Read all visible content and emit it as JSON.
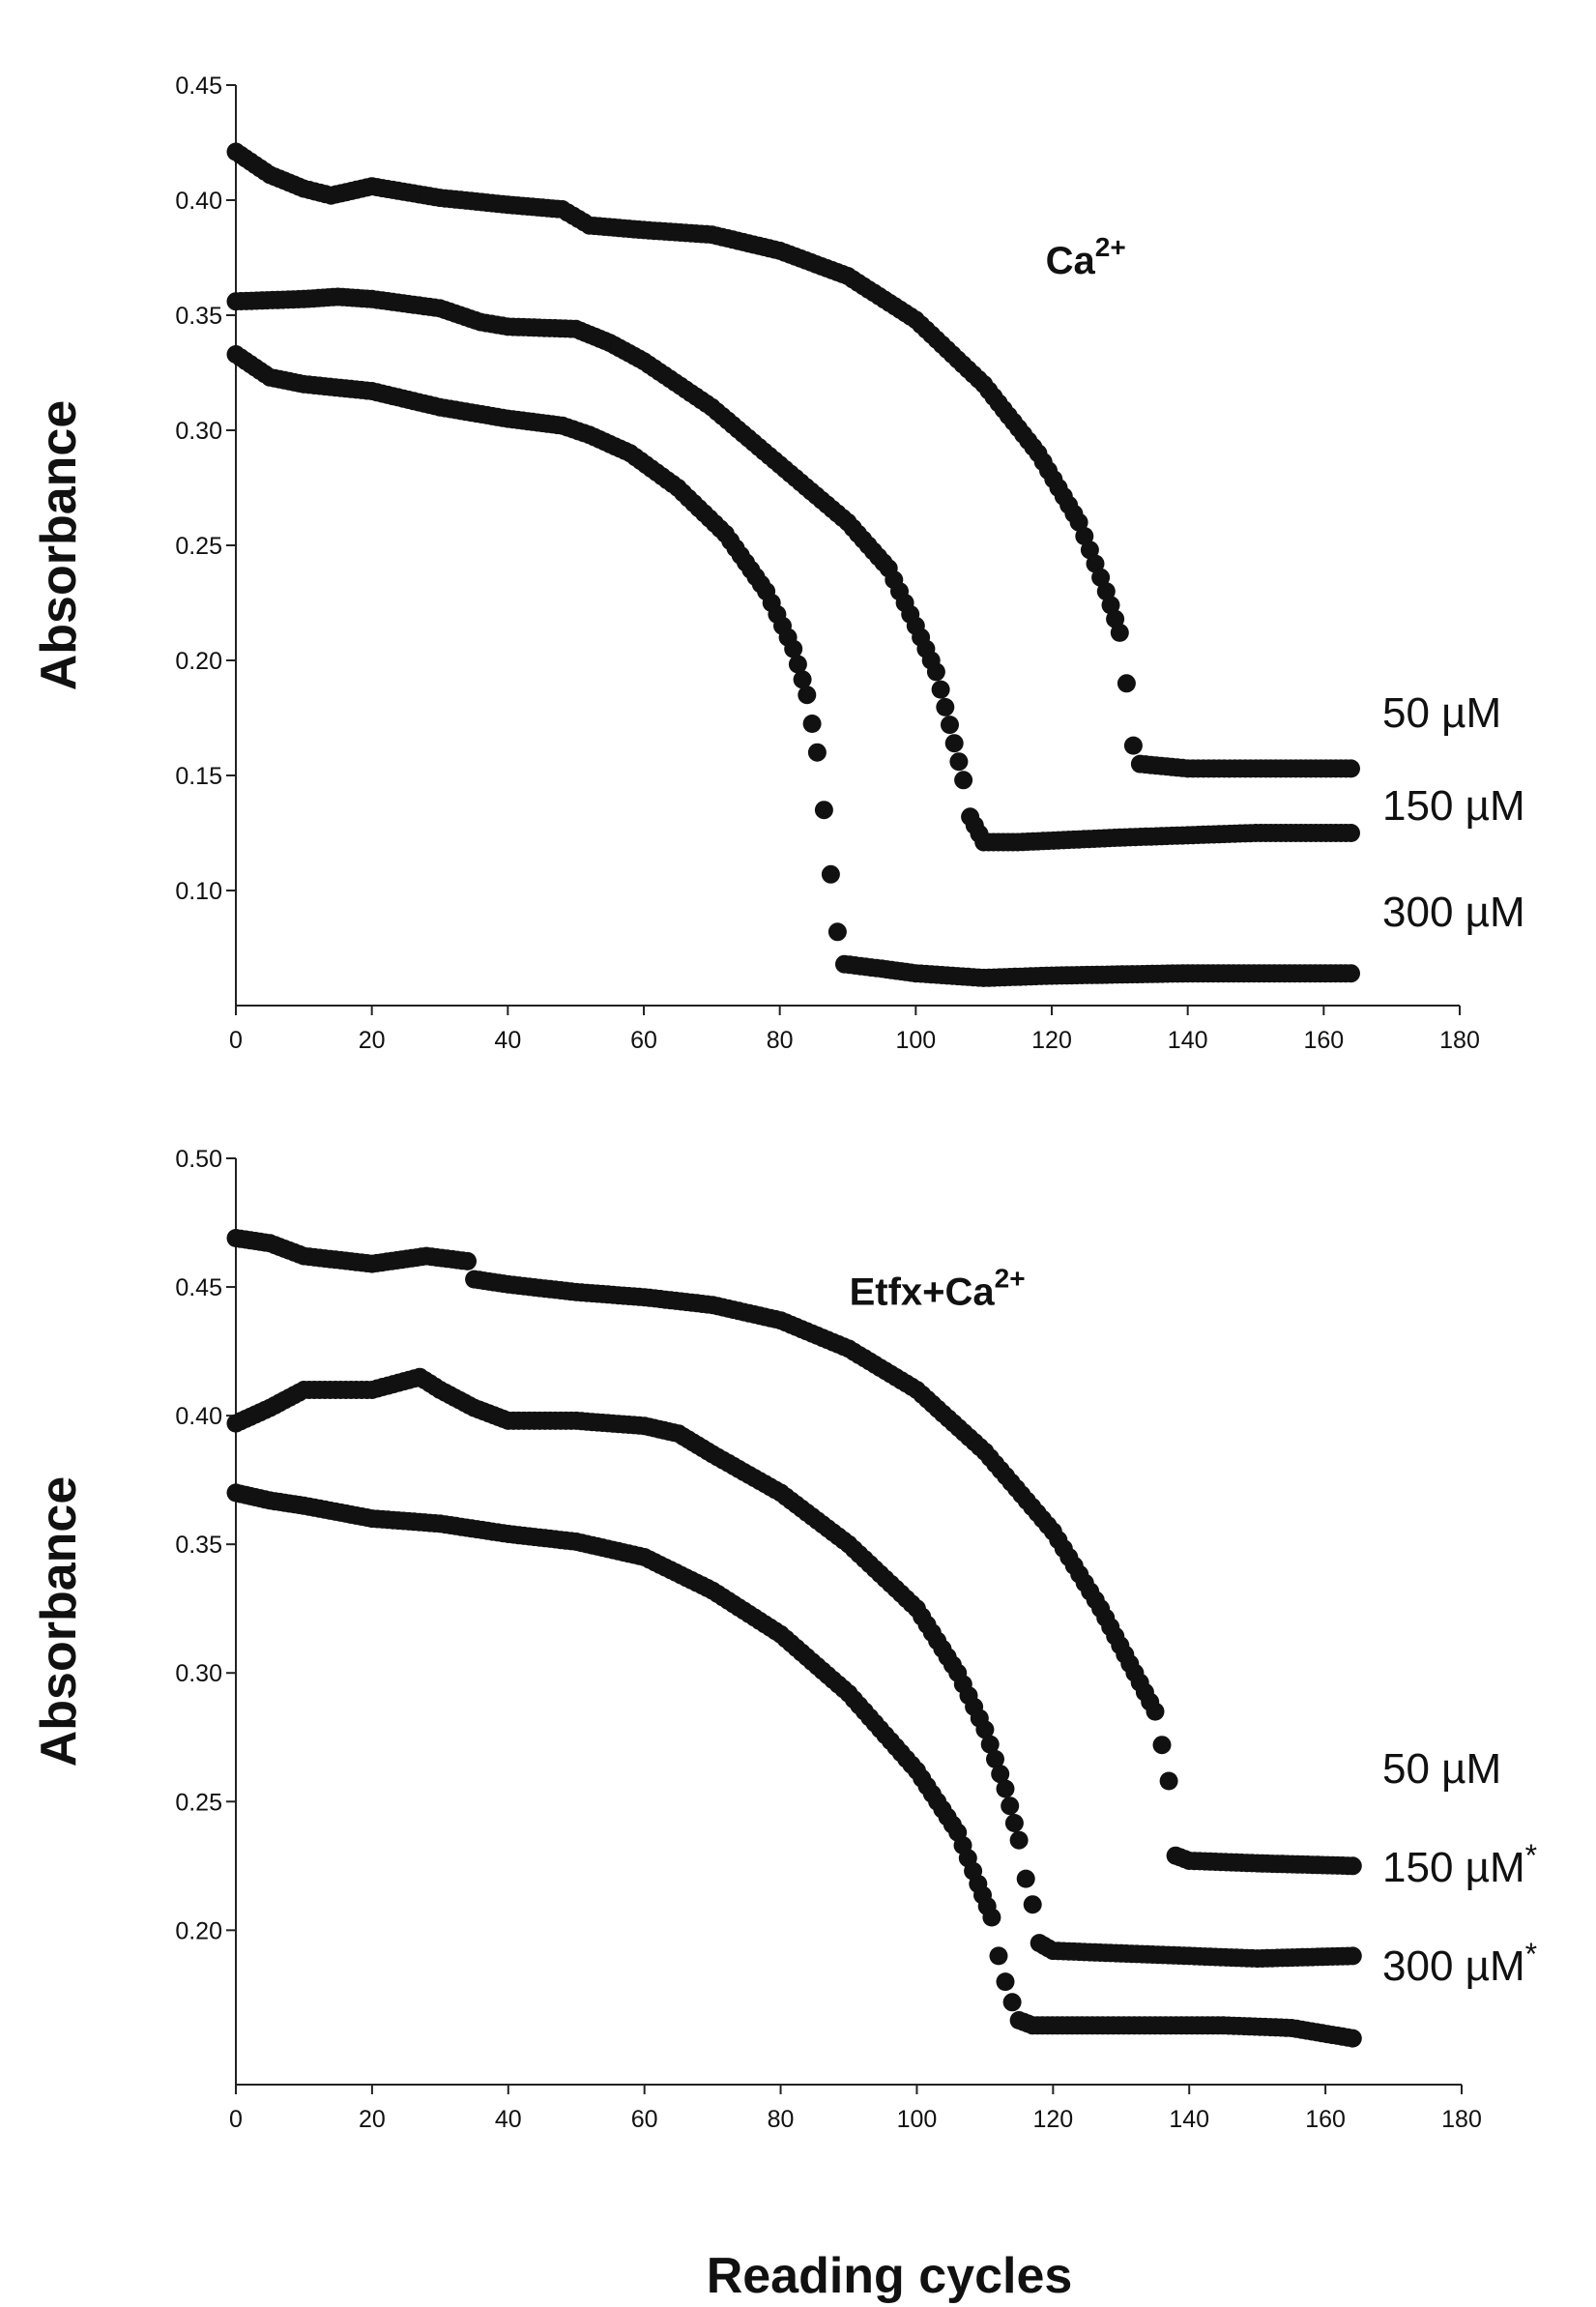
{
  "xlabel_common": "Reading cycles",
  "colors": {
    "marker": "#111111",
    "axis": "#222222",
    "background": "#ffffff"
  },
  "chart_data": [
    {
      "type": "scatter",
      "ylabel": "Absorbance",
      "xlim": [
        0,
        180
      ],
      "ylim": [
        0.05,
        0.45
      ],
      "xticks": [
        0,
        20,
        40,
        60,
        80,
        100,
        120,
        140,
        160,
        180
      ],
      "xtick_labels": [
        "0",
        "20",
        "40",
        "60",
        "80",
        "100",
        "120",
        "140",
        "160",
        "180"
      ],
      "yticks": [
        0.1,
        0.15,
        0.2,
        0.25,
        0.3,
        0.35,
        0.4,
        0.45
      ],
      "ytick_labels": [
        "0.10",
        "0.15",
        "0.20",
        "0.25",
        "0.30",
        "0.35",
        "0.40",
        "0.45"
      ],
      "annotation": {
        "base": "Ca",
        "sup": "2+",
        "x": 125,
        "y": 0.368
      },
      "series": [
        {
          "name": "50 µM",
          "label_text": "50 µM",
          "label_star": "",
          "points": [
            [
              0,
              0.421
            ],
            [
              5,
              0.411
            ],
            [
              10,
              0.405
            ],
            [
              14,
              0.402
            ],
            [
              20,
              0.406
            ],
            [
              30,
              0.401
            ],
            [
              40,
              0.398
            ],
            [
              48,
              0.396
            ],
            [
              52,
              0.389
            ],
            [
              60,
              0.387
            ],
            [
              70,
              0.385
            ],
            [
              80,
              0.378
            ],
            [
              90,
              0.367
            ],
            [
              100,
              0.348
            ],
            [
              110,
              0.32
            ],
            [
              118,
              0.29
            ],
            [
              124,
              0.26
            ],
            [
              128,
              0.23
            ],
            [
              130,
              0.212
            ],
            [
              131,
              0.19
            ],
            [
              132,
              0.163
            ],
            [
              133,
              0.155
            ],
            [
              140,
              0.153
            ],
            [
              150,
              0.153
            ],
            [
              164,
              0.153
            ]
          ]
        },
        {
          "name": "150 µM",
          "label_text": "150 µM",
          "label_star": "",
          "points": [
            [
              0,
              0.356
            ],
            [
              10,
              0.357
            ],
            [
              15,
              0.358
            ],
            [
              20,
              0.357
            ],
            [
              30,
              0.353
            ],
            [
              36,
              0.347
            ],
            [
              40,
              0.345
            ],
            [
              50,
              0.344
            ],
            [
              55,
              0.338
            ],
            [
              60,
              0.33
            ],
            [
              70,
              0.31
            ],
            [
              80,
              0.285
            ],
            [
              90,
              0.26
            ],
            [
              96,
              0.24
            ],
            [
              100,
              0.215
            ],
            [
              103,
              0.195
            ],
            [
              105,
              0.172
            ],
            [
              107,
              0.148
            ],
            [
              108,
              0.132
            ],
            [
              110,
              0.121
            ],
            [
              115,
              0.121
            ],
            [
              130,
              0.123
            ],
            [
              140,
              0.124
            ],
            [
              150,
              0.125
            ],
            [
              164,
              0.125
            ]
          ]
        },
        {
          "name": "300 µM",
          "label_text": "300 µM",
          "label_star": "",
          "points": [
            [
              0,
              0.333
            ],
            [
              5,
              0.323
            ],
            [
              10,
              0.32
            ],
            [
              20,
              0.317
            ],
            [
              30,
              0.31
            ],
            [
              40,
              0.305
            ],
            [
              48,
              0.302
            ],
            [
              52,
              0.298
            ],
            [
              58,
              0.29
            ],
            [
              65,
              0.275
            ],
            [
              72,
              0.255
            ],
            [
              78,
              0.23
            ],
            [
              82,
              0.205
            ],
            [
              84,
              0.185
            ],
            [
              85.5,
              0.16
            ],
            [
              86.5,
              0.135
            ],
            [
              87.5,
              0.107
            ],
            [
              88.5,
              0.082
            ],
            [
              89.5,
              0.068
            ],
            [
              95,
              0.066
            ],
            [
              100,
              0.064
            ],
            [
              110,
              0.062
            ],
            [
              120,
              0.063
            ],
            [
              140,
              0.064
            ],
            [
              164,
              0.064
            ]
          ]
        }
      ]
    },
    {
      "type": "scatter",
      "ylabel": "Absorbance",
      "xlim": [
        0,
        180
      ],
      "ylim": [
        0.14,
        0.5
      ],
      "xticks": [
        0,
        20,
        40,
        60,
        80,
        100,
        120,
        140,
        160,
        180
      ],
      "xtick_labels": [
        "0",
        "20",
        "40",
        "60",
        "80",
        "100",
        "120",
        "140",
        "160",
        "180"
      ],
      "yticks": [
        0.2,
        0.25,
        0.3,
        0.35,
        0.4,
        0.45,
        0.5
      ],
      "ytick_labels": [
        "0.20",
        "0.25",
        "0.30",
        "0.35",
        "0.40",
        "0.45",
        "0.50"
      ],
      "annotation": {
        "base": "Etfx+Ca",
        "sup": "2+",
        "x": 103,
        "y": 0.443
      },
      "series": [
        {
          "name": "50 µM",
          "label_text": "50 µM",
          "label_star": "",
          "points": [
            [
              0,
              0.469
            ],
            [
              5,
              0.467
            ],
            [
              10,
              0.462
            ],
            [
              20,
              0.459
            ],
            [
              28,
              0.462
            ],
            [
              34,
              0.46
            ],
            [
              35,
              0.453
            ],
            [
              40,
              0.451
            ],
            [
              50,
              0.448
            ],
            [
              60,
              0.446
            ],
            [
              70,
              0.443
            ],
            [
              80,
              0.437
            ],
            [
              90,
              0.426
            ],
            [
              100,
              0.41
            ],
            [
              110,
              0.386
            ],
            [
              120,
              0.355
            ],
            [
              127,
              0.325
            ],
            [
              132,
              0.3
            ],
            [
              135,
              0.285
            ],
            [
              136,
              0.272
            ],
            [
              137,
              0.258
            ],
            [
              138,
              0.229
            ],
            [
              140,
              0.227
            ],
            [
              150,
              0.226
            ],
            [
              164,
              0.225
            ]
          ]
        },
        {
          "name": "150 µM",
          "label_text": "150 µM",
          "label_star": "*",
          "points": [
            [
              0,
              0.397
            ],
            [
              5,
              0.403
            ],
            [
              10,
              0.41
            ],
            [
              20,
              0.41
            ],
            [
              27,
              0.415
            ],
            [
              30,
              0.41
            ],
            [
              35,
              0.403
            ],
            [
              40,
              0.398
            ],
            [
              50,
              0.398
            ],
            [
              60,
              0.396
            ],
            [
              65,
              0.393
            ],
            [
              70,
              0.385
            ],
            [
              80,
              0.37
            ],
            [
              90,
              0.35
            ],
            [
              100,
              0.325
            ],
            [
              106,
              0.3
            ],
            [
              110,
              0.278
            ],
            [
              113,
              0.255
            ],
            [
              115,
              0.235
            ],
            [
              116,
              0.22
            ],
            [
              117,
              0.21
            ],
            [
              118,
              0.195
            ],
            [
              120,
              0.192
            ],
            [
              130,
              0.191
            ],
            [
              140,
              0.19
            ],
            [
              150,
              0.189
            ],
            [
              164,
              0.19
            ]
          ]
        },
        {
          "name": "300 µM",
          "label_text": "300 µM",
          "label_star": "*",
          "points": [
            [
              0,
              0.37
            ],
            [
              5,
              0.367
            ],
            [
              10,
              0.365
            ],
            [
              20,
              0.36
            ],
            [
              30,
              0.358
            ],
            [
              40,
              0.354
            ],
            [
              50,
              0.351
            ],
            [
              60,
              0.345
            ],
            [
              70,
              0.332
            ],
            [
              80,
              0.315
            ],
            [
              90,
              0.292
            ],
            [
              100,
              0.262
            ],
            [
              106,
              0.238
            ],
            [
              109,
              0.218
            ],
            [
              111,
              0.205
            ],
            [
              112,
              0.19
            ],
            [
              113,
              0.18
            ],
            [
              114,
              0.172
            ],
            [
              115,
              0.165
            ],
            [
              117,
              0.163
            ],
            [
              125,
              0.163
            ],
            [
              135,
              0.163
            ],
            [
              145,
              0.163
            ],
            [
              155,
              0.162
            ],
            [
              164,
              0.158
            ]
          ]
        }
      ]
    }
  ]
}
